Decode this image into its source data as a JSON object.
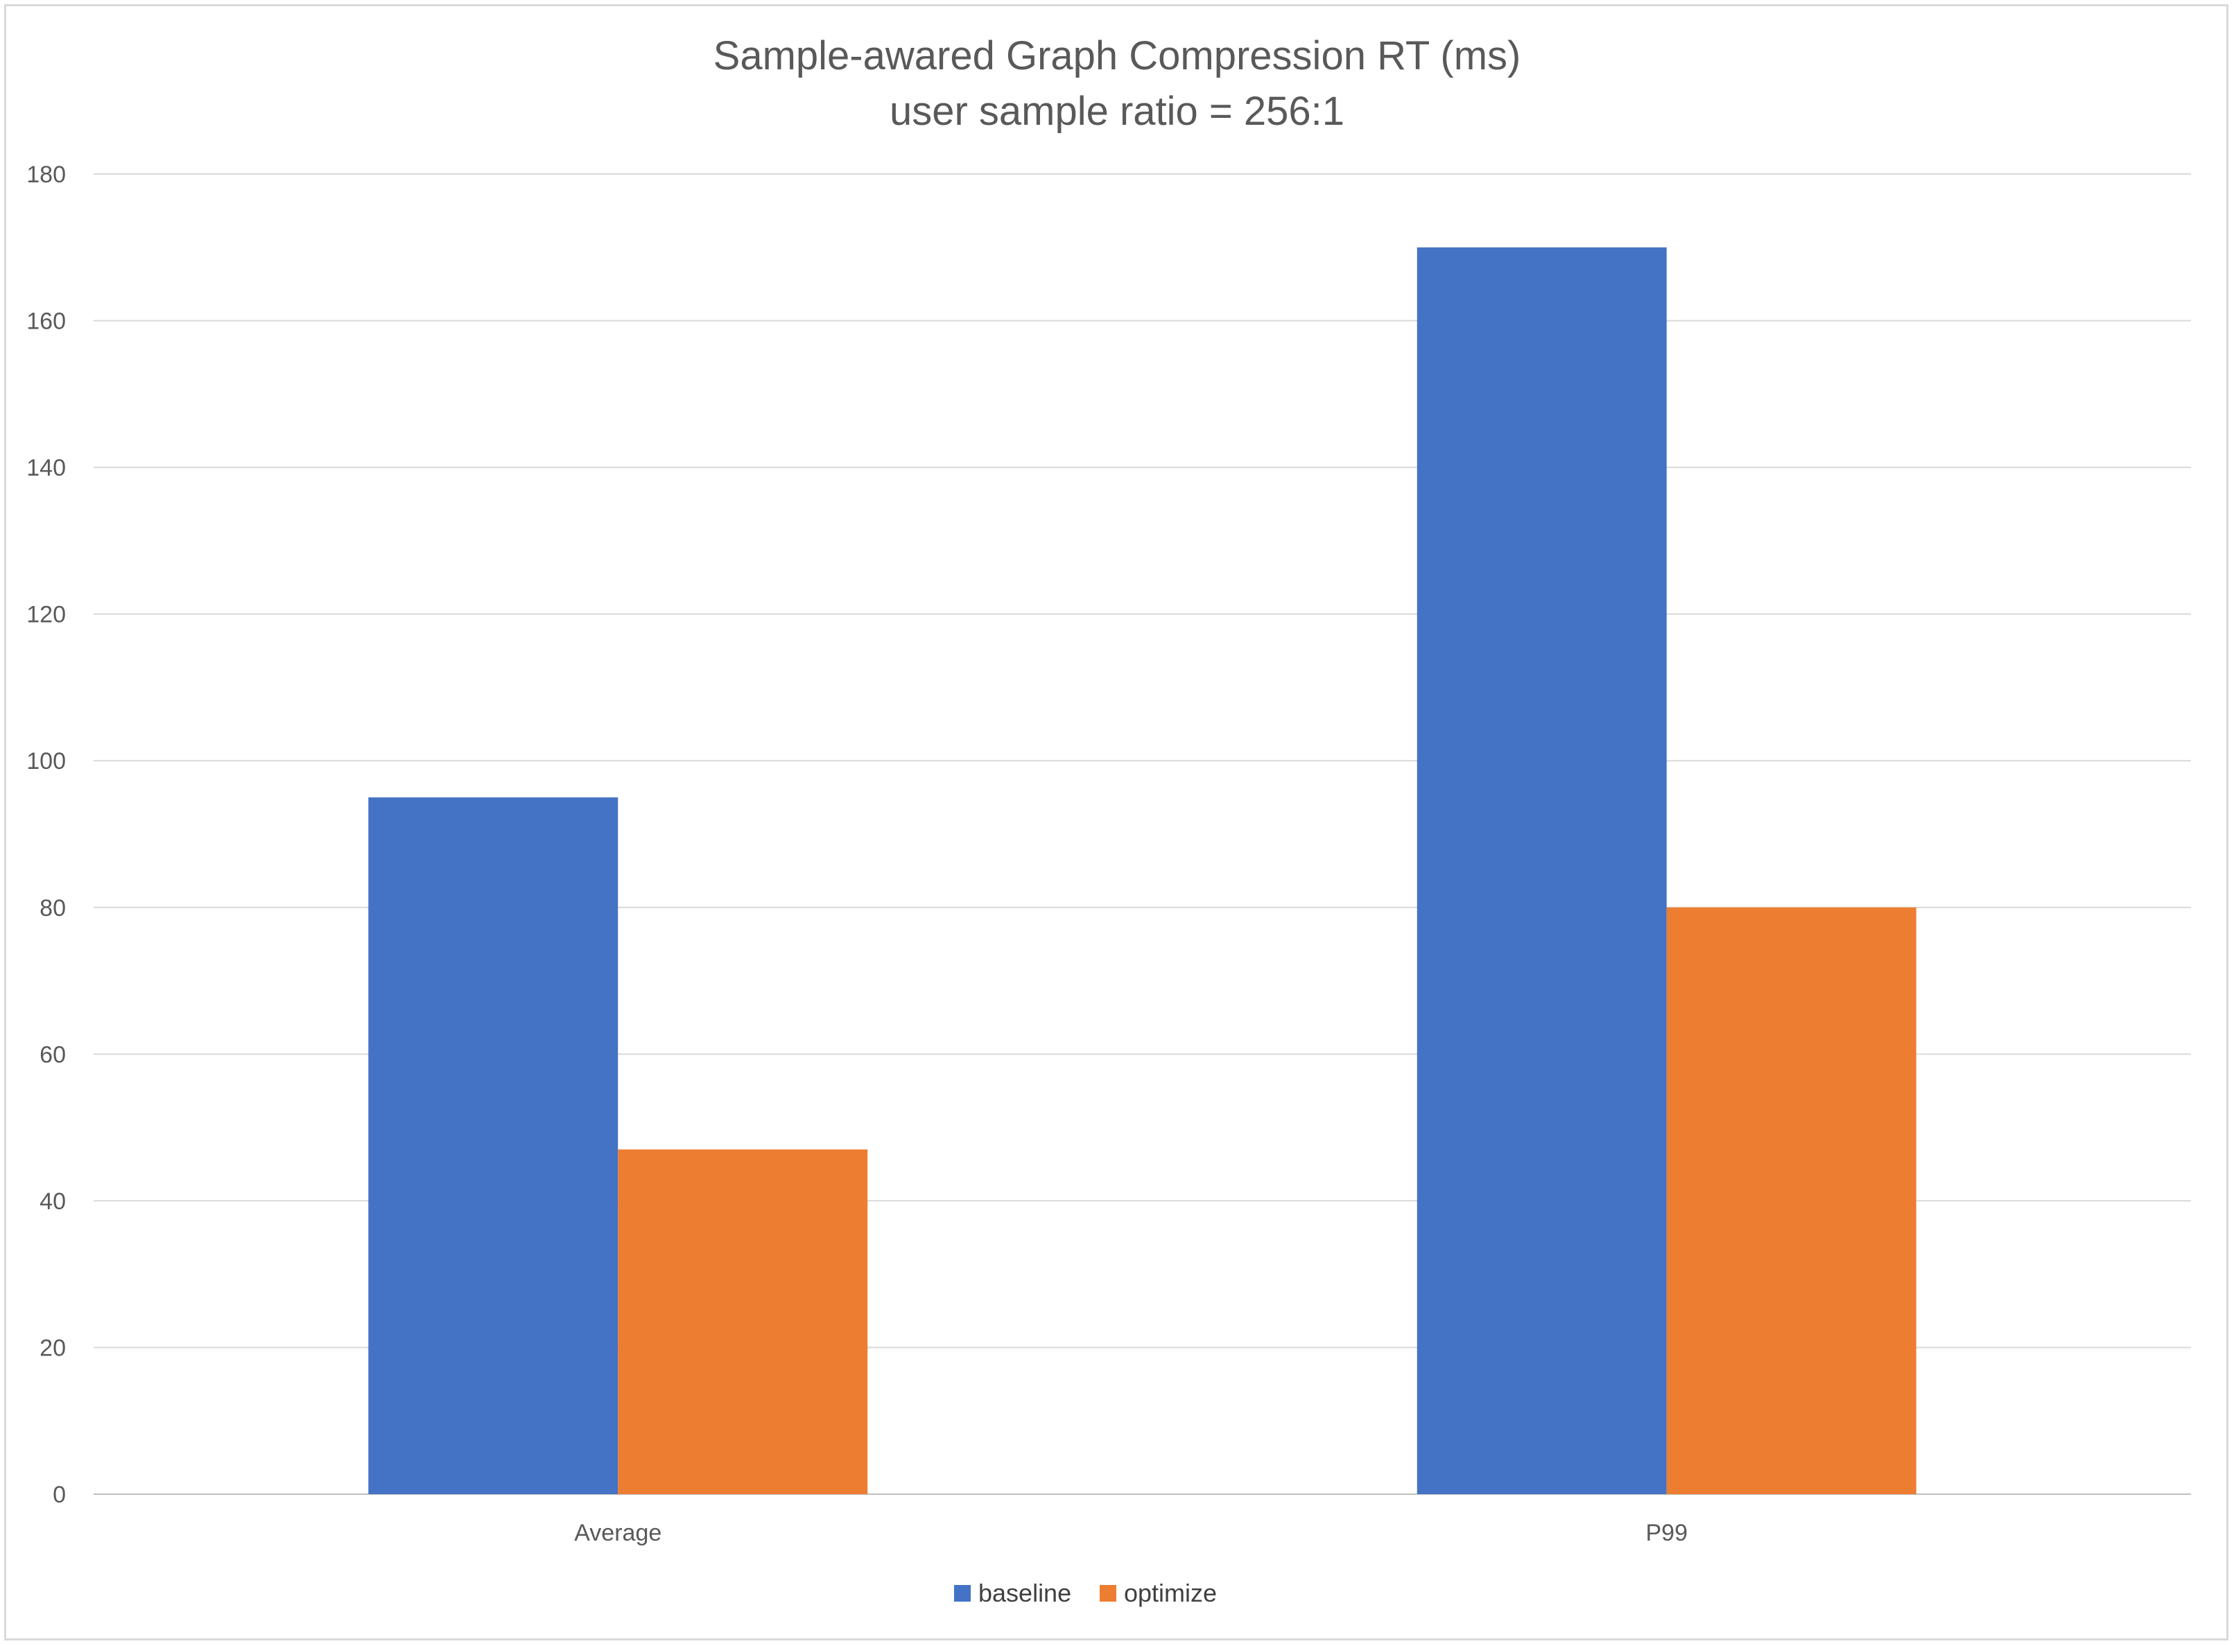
{
  "chart_data": {
    "type": "bar",
    "title": "Sample-awared Graph Compression RT (ms)",
    "subtitle": "user sample ratio = 256:1",
    "xlabel": "",
    "ylabel": "",
    "categories": [
      "Average",
      "P99"
    ],
    "series": [
      {
        "name": "baseline",
        "color": "#4472c4",
        "values": [
          95,
          170
        ]
      },
      {
        "name": "optimize",
        "color": "#ed7d31",
        "values": [
          47,
          80
        ]
      }
    ],
    "ylim": [
      0,
      180
    ],
    "yticks": [
      0,
      20,
      40,
      60,
      80,
      100,
      120,
      140,
      160,
      180
    ],
    "grid": true,
    "legend_position": "bottom"
  }
}
